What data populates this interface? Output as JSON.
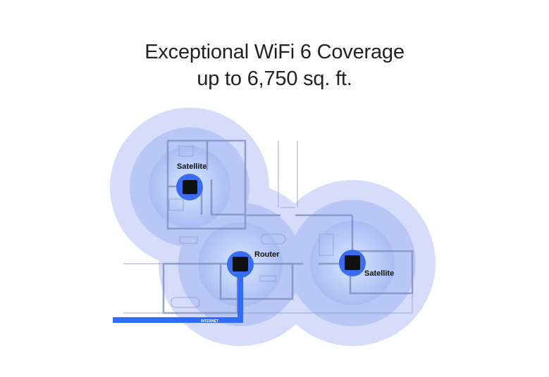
{
  "title": {
    "line1": "Exceptional WiFi 6 Coverage",
    "line2": "up to 6,750 sq. ft."
  },
  "devices": [
    {
      "label": "Satellite",
      "icon": "mesh-satellite-icon"
    },
    {
      "label": "Router",
      "icon": "mesh-router-icon"
    },
    {
      "label": "Satellite",
      "icon": "mesh-satellite-icon"
    }
  ],
  "internet_label": "INTERNET",
  "colors": {
    "outer_ring": "#d5ddfb",
    "middle_ring": "#b9c7f6",
    "inner_ring": "#a8bcf4",
    "device_badge": "#3a6cf0",
    "internet_line": "#2f6bff"
  }
}
